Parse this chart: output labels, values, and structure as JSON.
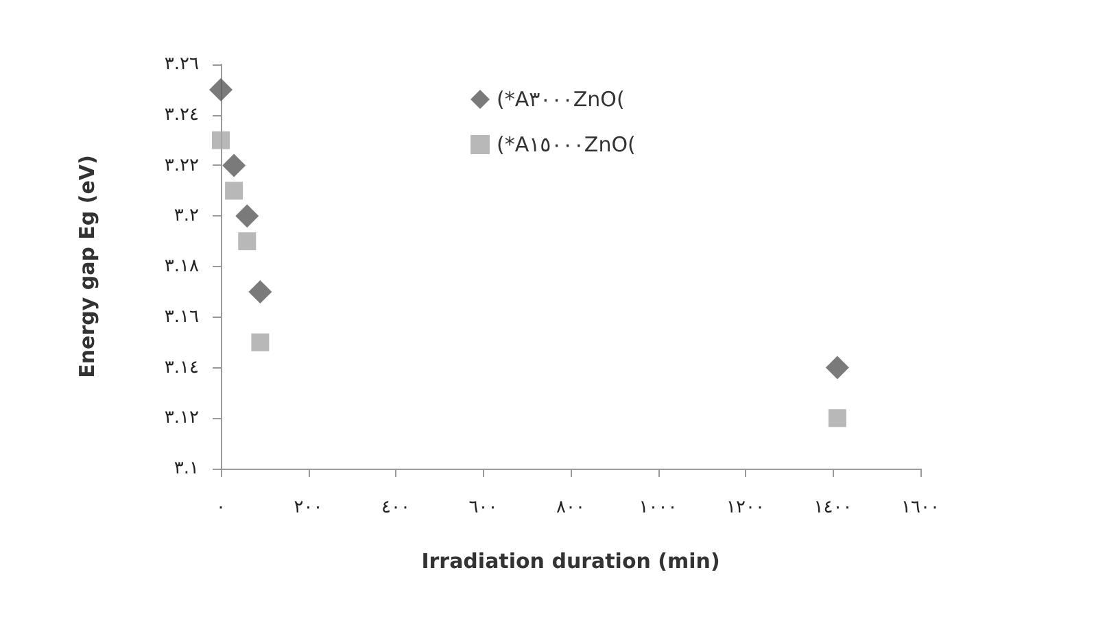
{
  "chart_data": {
    "type": "scatter",
    "xlabel": "Irradiation duration (min)",
    "ylabel": "Energy gap Eg (eV)",
    "xlim": [
      0,
      1600
    ],
    "ylim": [
      3.1,
      3.26
    ],
    "xticks": [
      {
        "value": 0,
        "label": "٠"
      },
      {
        "value": 200,
        "label": "٢٠٠"
      },
      {
        "value": 400,
        "label": "٤٠٠"
      },
      {
        "value": 600,
        "label": "٦٠٠"
      },
      {
        "value": 800,
        "label": "٨٠٠"
      },
      {
        "value": 1000,
        "label": "١٠٠٠"
      },
      {
        "value": 1200,
        "label": "١٢٠٠"
      },
      {
        "value": 1400,
        "label": "١٤٠٠"
      },
      {
        "value": 1600,
        "label": "١٦٠٠"
      }
    ],
    "yticks": [
      {
        "value": 3.1,
        "label": "٣.١"
      },
      {
        "value": 3.12,
        "label": "٣.١٢"
      },
      {
        "value": 3.14,
        "label": "٣.١٤"
      },
      {
        "value": 3.16,
        "label": "٣.١٦"
      },
      {
        "value": 3.18,
        "label": "٣.١٨"
      },
      {
        "value": 3.2,
        "label": "٣.٢"
      },
      {
        "value": 3.22,
        "label": "٣.٢٢"
      },
      {
        "value": 3.24,
        "label": "٣.٢٤"
      },
      {
        "value": 3.26,
        "label": "٣.٢٦"
      }
    ],
    "x": [
      0,
      30,
      60,
      90,
      1410
    ],
    "series": [
      {
        "name": "(*A٣٠٠٠ZnO(",
        "color": "#595959",
        "marker": "diamond",
        "values": [
          3.25,
          3.22,
          3.2,
          3.17,
          3.14
        ]
      },
      {
        "name": "(*A١٥٠٠٠ZnO(",
        "color": "#a6a6a6",
        "marker": "square",
        "values": [
          3.23,
          3.21,
          3.19,
          3.15,
          3.12
        ]
      }
    ],
    "grid": false,
    "legend": "top"
  }
}
